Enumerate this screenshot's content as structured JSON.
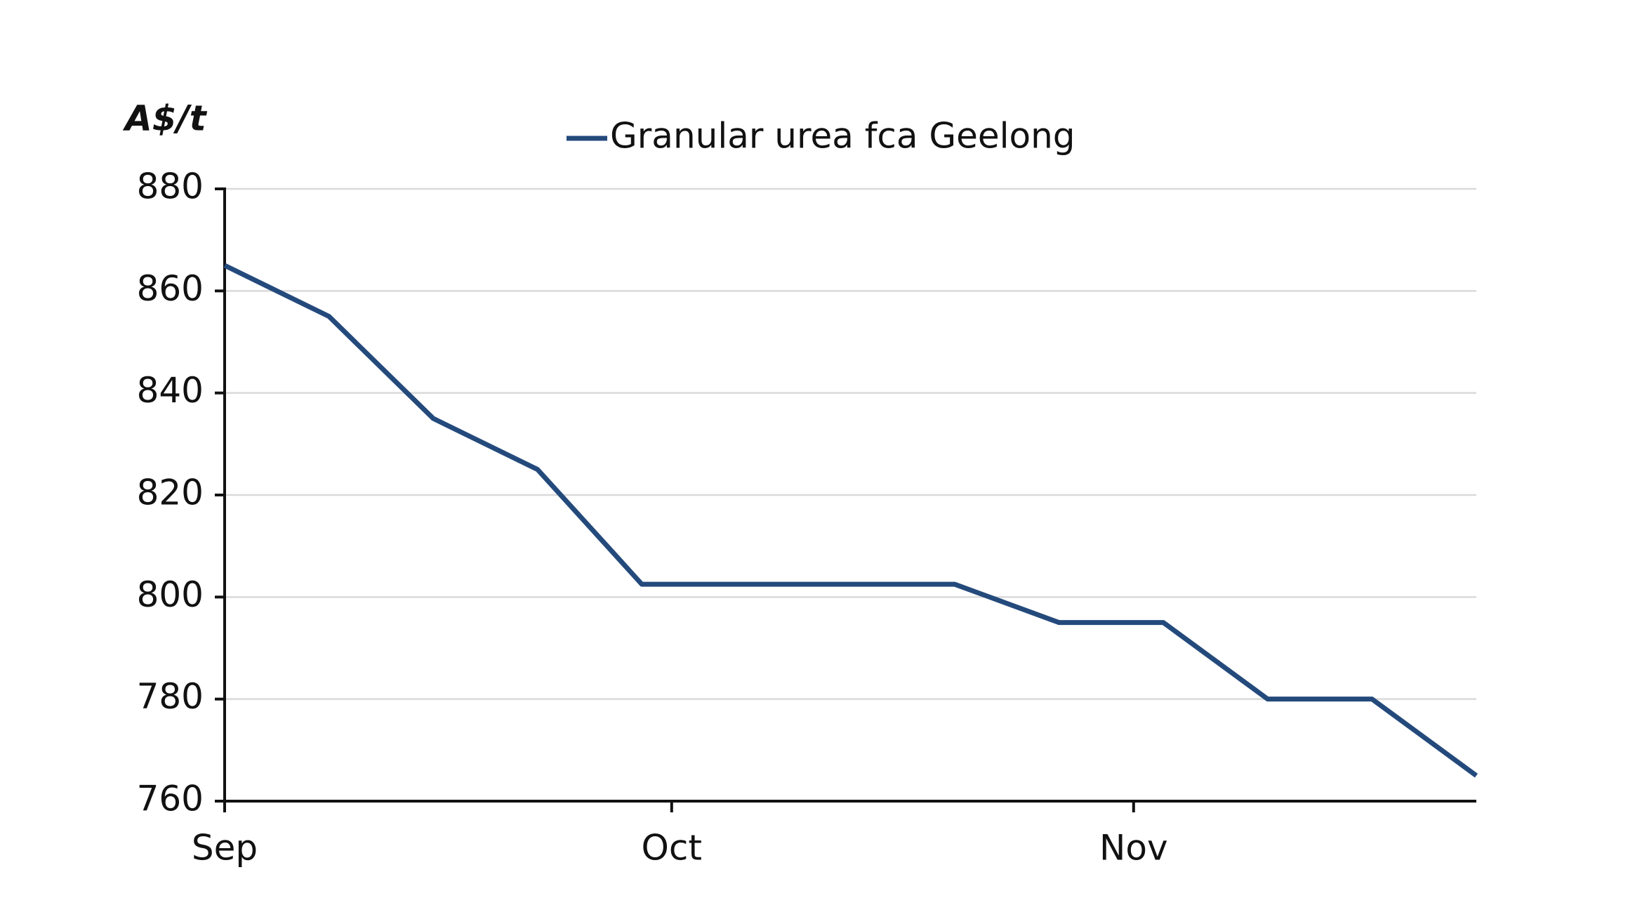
{
  "chart_data": {
    "type": "line",
    "y_label": "A$/t",
    "x": [
      0,
      7,
      14,
      21,
      28,
      35,
      42,
      49,
      56,
      63,
      70,
      77,
      84
    ],
    "series": [
      {
        "name": "Granular urea fca Geelong",
        "color": "#244a7c",
        "values": [
          865,
          855,
          835,
          825,
          802.5,
          802.5,
          802.5,
          802.5,
          795,
          795,
          780,
          780,
          765
        ]
      }
    ],
    "xlim": [
      0,
      84
    ],
    "xticks": [
      {
        "value": 0,
        "label": "Sep"
      },
      {
        "value": 30,
        "label": "Oct"
      },
      {
        "value": 61,
        "label": "Nov"
      }
    ],
    "ylim": [
      760,
      880
    ],
    "yticks": [
      760,
      780,
      800,
      820,
      840,
      860,
      880
    ],
    "grid": true,
    "legend": "top"
  }
}
